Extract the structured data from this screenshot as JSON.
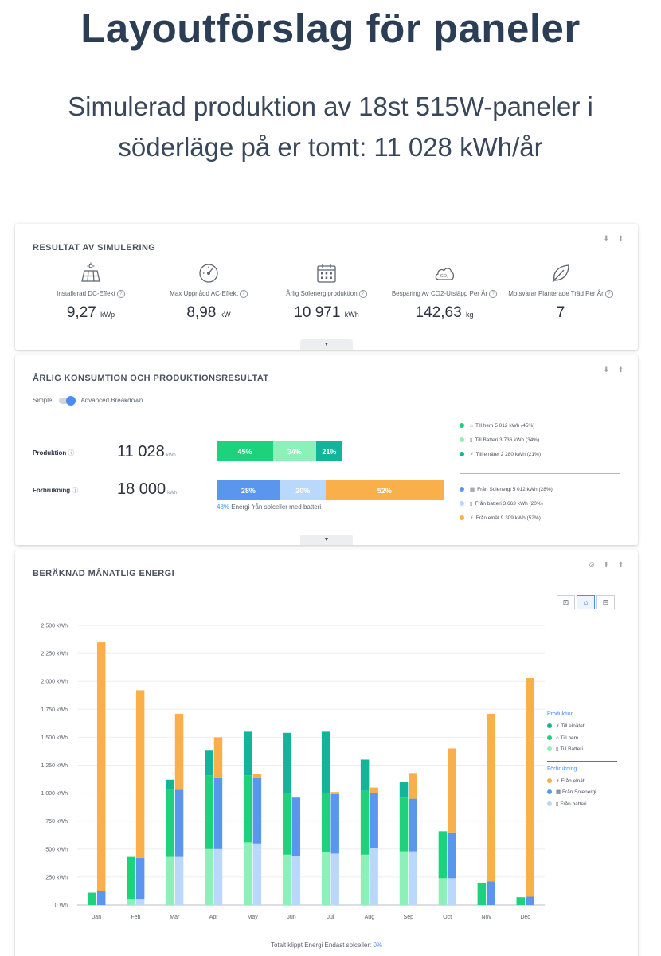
{
  "page": {
    "title": "Layoutförslag för paneler",
    "subtitle_line1": "Simulerad produktion av 18st 515W-paneler i",
    "subtitle_line2": "söderläge på er tomt: 11 028 kWh/år"
  },
  "colors": {
    "till_natet": "#13b59a",
    "till_hem": "#1dd27a",
    "till_batteri": "#8df0b8",
    "fran_elnat": "#f9b04a",
    "fran_solenergi": "#5b96ee",
    "fran_batteri": "#b9d8fb"
  },
  "simulation": {
    "title": "RESULTAT AV SIMULERING",
    "controls": "⬇ ⬆",
    "stats": [
      {
        "icon": "solar-panel-icon",
        "label": "Installerad DC-Effekt",
        "value": "9,27",
        "unit": "kWp"
      },
      {
        "icon": "gauge-icon",
        "label": "Max Uppnådd AC-Effekt",
        "value": "8,98",
        "unit": "kW"
      },
      {
        "icon": "calendar-icon",
        "label": "Årlig Solenergiproduktion",
        "value": "10 971",
        "unit": "kWh"
      },
      {
        "icon": "co2-cloud-icon",
        "label": "Besparing Av CO2-Utsläpp Per År",
        "value": "142,63",
        "unit": "kg"
      },
      {
        "icon": "leaf-icon",
        "label": "Motsvarar Planterade Träd Per År",
        "value": "7",
        "unit": ""
      }
    ],
    "help_glyph": "?"
  },
  "annual": {
    "title": "ÅRLIG KONSUMTION OCH PRODUKTIONSRESULTAT",
    "controls": "⬇ ⬆",
    "toggle_left": "Simple",
    "toggle_right": "Advanced Breakdown",
    "production": {
      "label": "Produktion",
      "value": "11 028",
      "unit": "kWh",
      "segments": [
        {
          "pct": 45,
          "label": "45%",
          "color": "#1dd27a"
        },
        {
          "pct": 34,
          "label": "34%",
          "color": "#8df0b8"
        },
        {
          "pct": 21,
          "label": "21%",
          "color": "#13b59a"
        }
      ]
    },
    "consumption": {
      "label": "Förbrukning",
      "value": "18 000",
      "unit": "kWh",
      "segments": [
        {
          "pct": 28,
          "label": "28%",
          "color": "#5b96ee"
        },
        {
          "pct": 20,
          "label": "20%",
          "color": "#b9d8fb"
        },
        {
          "pct": 52,
          "label": "52%",
          "color": "#f9b04a"
        }
      ]
    },
    "note_pct": "48%",
    "note_text": " Energi från solceller med batteri",
    "legend_production": [
      {
        "color": "#1dd27a",
        "glyph": "⌂",
        "text": "Till hem 5 012 kWh (45%)"
      },
      {
        "color": "#8df0b8",
        "glyph": "▯",
        "text": "Till Batteri 3 736 kWh (34%)"
      },
      {
        "color": "#13b59a",
        "glyph": "⚡",
        "text": "Till elnätet 2 280 kWh (21%)"
      }
    ],
    "legend_consumption": [
      {
        "color": "#5b96ee",
        "glyph": "▦",
        "text": "Från Solenergi 5 012 kWh (28%)"
      },
      {
        "color": "#b9d8fb",
        "glyph": "▯",
        "text": "Från batteri 3 663 kWh (20%)"
      },
      {
        "color": "#f9b04a",
        "glyph": "⚡",
        "text": "Från elnät 9 309 kWh (52%)"
      }
    ]
  },
  "monthly": {
    "title": "BERÄKNAD MÅNATLIG ENERGI",
    "controls": "⊘ ⬇ ⬆",
    "view_buttons": [
      "⊡",
      "⌂",
      "⊟"
    ],
    "legend": {
      "production_header": "Produktion",
      "production_items": [
        "Till elnätet",
        "Till hem",
        "Till Batteri"
      ],
      "consumption_header": "Förbrukning",
      "consumption_items": [
        "Från elnät",
        "Från Solenergi",
        "Från batteri"
      ]
    },
    "footer_text": "Totalt klippt Energi Endast solceller: ",
    "footer_value": "0%"
  },
  "chart_data": {
    "type": "bar",
    "title": "BERÄKNAD MÅNATLIG ENERGI",
    "categories": [
      "Jan",
      "Feb",
      "Mar",
      "Apr",
      "May",
      "Jun",
      "Jul",
      "Aug",
      "Sep",
      "Oct",
      "Nov",
      "Dec"
    ],
    "y_ticks": [
      "0 Wh",
      "250 kWh",
      "500 kWh",
      "750 kWh",
      "1 000 kWh",
      "1 250 kWh",
      "1 500 kWh",
      "1 750 kWh",
      "2 000 kWh",
      "2 250 kWh",
      "2 500 kWh"
    ],
    "ylim": [
      0,
      2500
    ],
    "grid": true,
    "legend_position": "right",
    "stacks": [
      {
        "name": "Produktion",
        "series": [
          {
            "name": "Till Batteri",
            "color": "#8df0b8",
            "values": [
              0,
              50,
              430,
              500,
              560,
              450,
              470,
              450,
              480,
              240,
              0,
              0
            ]
          },
          {
            "name": "Till hem",
            "color": "#1dd27a",
            "values": [
              110,
              380,
              600,
              660,
              600,
              550,
              530,
              570,
              480,
              420,
              200,
              70
            ]
          },
          {
            "name": "Till elnätet",
            "color": "#13b59a",
            "values": [
              0,
              0,
              90,
              220,
              390,
              540,
              550,
              280,
              140,
              0,
              0,
              0
            ]
          }
        ]
      },
      {
        "name": "Förbrukning",
        "series": [
          {
            "name": "Från batteri",
            "color": "#b9d8fb",
            "values": [
              0,
              50,
              430,
              500,
              550,
              440,
              460,
              510,
              480,
              240,
              0,
              0
            ]
          },
          {
            "name": "Från Solenergi",
            "color": "#5b96ee",
            "values": [
              125,
              370,
              600,
              640,
              590,
              520,
              530,
              490,
              470,
              410,
              210,
              75
            ]
          },
          {
            "name": "Från elnät",
            "color": "#f9b04a",
            "values": [
              2225,
              1500,
              680,
              360,
              30,
              0,
              20,
              50,
              230,
              750,
              1500,
              1955
            ]
          }
        ]
      }
    ]
  }
}
